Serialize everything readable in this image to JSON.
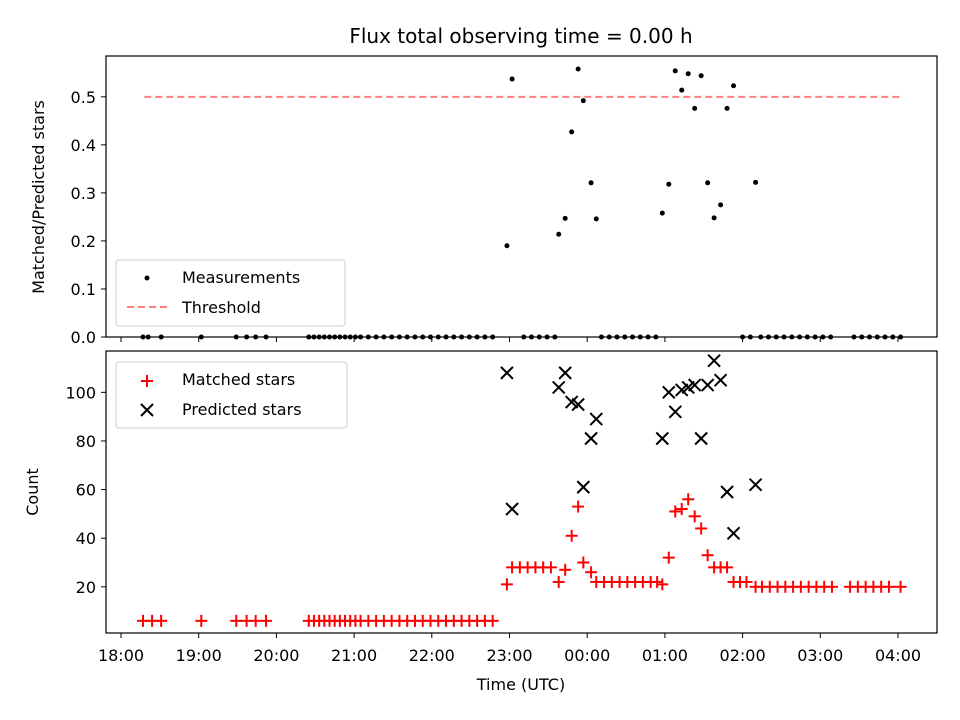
{
  "title": "Flux total observing time = 0.00 h",
  "xlabel": "Time (UTC)",
  "x_ticks": [
    "18:00",
    "19:00",
    "20:00",
    "21:00",
    "22:00",
    "23:00",
    "00:00",
    "01:00",
    "02:00",
    "03:00",
    "04:00"
  ],
  "colors": {
    "measurements": "#000000",
    "threshold": "#ff7f7f",
    "matched": "#ff0000",
    "predicted": "#000000"
  },
  "chart_data": [
    {
      "type": "scatter",
      "ylabel": "Matched/Predicted stars",
      "ylim": [
        0,
        0.585
      ],
      "y_ticks": [
        "0.0",
        "0.1",
        "0.2",
        "0.3",
        "0.4",
        "0.5"
      ],
      "x_axis": "time (hours since 18:00, axis labels 18:00 to 04:00)",
      "legend_position": "lower left",
      "series": [
        {
          "name": "Measurements",
          "marker": "dot",
          "zero_times": [
            "18:17",
            "18:21",
            "18:31",
            "19:02",
            "19:29",
            "19:37",
            "19:44",
            "19:52",
            "20:25",
            "20:29",
            "20:33",
            "20:37",
            "20:41",
            "20:45",
            "20:49",
            "20:53",
            "20:57",
            "21:01",
            "21:05",
            "21:11",
            "21:17",
            "21:23",
            "21:29",
            "21:35",
            "21:41",
            "21:47",
            "21:53",
            "21:59",
            "22:05",
            "22:11",
            "22:17",
            "22:23",
            "22:29",
            "22:35",
            "22:41",
            "22:47",
            "23:11",
            "23:17",
            "23:23",
            "23:29",
            "23:35",
            "00:11",
            "00:17",
            "00:23",
            "00:29",
            "00:35",
            "00:41",
            "00:47",
            "00:53",
            "02:00",
            "02:06",
            "02:14",
            "02:20",
            "02:26",
            "02:32",
            "02:38",
            "02:44",
            "02:50",
            "02:56",
            "03:02",
            "03:08",
            "03:26",
            "03:32",
            "03:38",
            "03:44",
            "03:50",
            "03:56",
            "04:02"
          ],
          "nonzero_points": [
            {
              "x": "22:58",
              "y": 0.19
            },
            {
              "x": "23:02",
              "y": 0.537
            },
            {
              "x": "23:38",
              "y": 0.214
            },
            {
              "x": "23:43",
              "y": 0.247
            },
            {
              "x": "23:48",
              "y": 0.427
            },
            {
              "x": "23:53",
              "y": 0.558
            },
            {
              "x": "23:57",
              "y": 0.492
            },
            {
              "x": "00:03",
              "y": 0.321
            },
            {
              "x": "00:07",
              "y": 0.246
            },
            {
              "x": "00:58",
              "y": 0.258
            },
            {
              "x": "01:03",
              "y": 0.318
            },
            {
              "x": "01:08",
              "y": 0.554
            },
            {
              "x": "01:13",
              "y": 0.514
            },
            {
              "x": "01:18",
              "y": 0.548
            },
            {
              "x": "01:23",
              "y": 0.476
            },
            {
              "x": "01:28",
              "y": 0.544
            },
            {
              "x": "01:33",
              "y": 0.321
            },
            {
              "x": "01:38",
              "y": 0.248
            },
            {
              "x": "01:43",
              "y": 0.275
            },
            {
              "x": "01:48",
              "y": 0.476
            },
            {
              "x": "01:53",
              "y": 0.523
            },
            {
              "x": "02:10",
              "y": 0.322
            }
          ]
        },
        {
          "name": "Threshold",
          "line_style": "dashed",
          "y": 0.5,
          "x_range": [
            "18:18",
            "04:02"
          ]
        }
      ]
    },
    {
      "type": "scatter",
      "ylabel": "Count",
      "ylim": [
        1,
        117
      ],
      "y_ticks": [
        "20",
        "40",
        "60",
        "80",
        "100"
      ],
      "legend_position": "upper left",
      "series": [
        {
          "name": "Matched stars",
          "marker": "plus",
          "points": [
            [
              "18:17",
              6
            ],
            [
              "18:24",
              6
            ],
            [
              "18:31",
              6
            ],
            [
              "19:02",
              6
            ],
            [
              "19:29",
              6
            ],
            [
              "19:37",
              6
            ],
            [
              "19:44",
              6
            ],
            [
              "19:52",
              6
            ],
            [
              "20:25",
              6
            ],
            [
              "20:29",
              6
            ],
            [
              "20:33",
              6
            ],
            [
              "20:37",
              6
            ],
            [
              "20:41",
              6
            ],
            [
              "20:45",
              6
            ],
            [
              "20:49",
              6
            ],
            [
              "20:53",
              6
            ],
            [
              "20:57",
              6
            ],
            [
              "21:01",
              6
            ],
            [
              "21:05",
              6
            ],
            [
              "21:11",
              6
            ],
            [
              "21:17",
              6
            ],
            [
              "21:23",
              6
            ],
            [
              "21:29",
              6
            ],
            [
              "21:35",
              6
            ],
            [
              "21:41",
              6
            ],
            [
              "21:47",
              6
            ],
            [
              "21:53",
              6
            ],
            [
              "21:59",
              6
            ],
            [
              "22:05",
              6
            ],
            [
              "22:11",
              6
            ],
            [
              "22:17",
              6
            ],
            [
              "22:23",
              6
            ],
            [
              "22:29",
              6
            ],
            [
              "22:35",
              6
            ],
            [
              "22:41",
              6
            ],
            [
              "22:47",
              6
            ],
            [
              "22:58",
              21
            ],
            [
              "23:02",
              28
            ],
            [
              "23:08",
              28
            ],
            [
              "23:14",
              28
            ],
            [
              "23:20",
              28
            ],
            [
              "23:26",
              28
            ],
            [
              "23:32",
              28
            ],
            [
              "23:38",
              22
            ],
            [
              "23:43",
              27
            ],
            [
              "23:48",
              41
            ],
            [
              "23:53",
              53
            ],
            [
              "23:57",
              30
            ],
            [
              "00:03",
              26
            ],
            [
              "00:07",
              22
            ],
            [
              "00:13",
              22
            ],
            [
              "00:19",
              22
            ],
            [
              "00:25",
              22
            ],
            [
              "00:31",
              22
            ],
            [
              "00:37",
              22
            ],
            [
              "00:43",
              22
            ],
            [
              "00:49",
              22
            ],
            [
              "00:54",
              22
            ],
            [
              "00:58",
              21
            ],
            [
              "01:03",
              32
            ],
            [
              "01:08",
              51
            ],
            [
              "01:13",
              52
            ],
            [
              "01:18",
              56
            ],
            [
              "01:23",
              49
            ],
            [
              "01:28",
              44
            ],
            [
              "01:33",
              33
            ],
            [
              "01:38",
              28
            ],
            [
              "01:43",
              28
            ],
            [
              "01:48",
              28
            ],
            [
              "01:53",
              22
            ],
            [
              "01:58",
              22
            ],
            [
              "02:03",
              22
            ],
            [
              "02:10",
              20
            ],
            [
              "02:15",
              20
            ],
            [
              "02:21",
              20
            ],
            [
              "02:27",
              20
            ],
            [
              "02:33",
              20
            ],
            [
              "02:39",
              20
            ],
            [
              "02:45",
              20
            ],
            [
              "02:51",
              20
            ],
            [
              "02:57",
              20
            ],
            [
              "03:03",
              20
            ],
            [
              "03:09",
              20
            ],
            [
              "03:23",
              20
            ],
            [
              "03:29",
              20
            ],
            [
              "03:35",
              20
            ],
            [
              "03:41",
              20
            ],
            [
              "03:47",
              20
            ],
            [
              "03:53",
              20
            ],
            [
              "04:02",
              20
            ]
          ]
        },
        {
          "name": "Predicted stars",
          "marker": "x",
          "points": [
            [
              "22:58",
              108
            ],
            [
              "23:02",
              52
            ],
            [
              "23:38",
              102
            ],
            [
              "23:43",
              108
            ],
            [
              "23:48",
              96
            ],
            [
              "23:53",
              95
            ],
            [
              "23:57",
              61
            ],
            [
              "00:03",
              81
            ],
            [
              "00:07",
              89
            ],
            [
              "00:58",
              81
            ],
            [
              "01:03",
              100
            ],
            [
              "01:08",
              92
            ],
            [
              "01:13",
              101
            ],
            [
              "01:18",
              102
            ],
            [
              "01:23",
              103
            ],
            [
              "01:28",
              81
            ],
            [
              "01:33",
              103
            ],
            [
              "01:38",
              113
            ],
            [
              "01:43",
              105
            ],
            [
              "01:48",
              59
            ],
            [
              "01:53",
              42
            ],
            [
              "02:10",
              62
            ]
          ]
        }
      ]
    }
  ]
}
